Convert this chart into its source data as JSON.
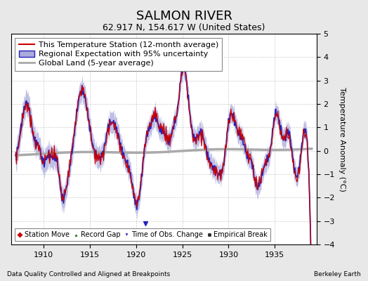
{
  "title": "SALMON RIVER",
  "subtitle": "62.917 N, 154.617 W (United States)",
  "xlabel_left": "Data Quality Controlled and Aligned at Breakpoints",
  "xlabel_right": "Berkeley Earth",
  "ylabel": "Temperature Anomaly (°C)",
  "xlim": [
    1906.5,
    1939.5
  ],
  "ylim": [
    -4,
    5
  ],
  "yticks": [
    -4,
    -3,
    -2,
    -1,
    0,
    1,
    2,
    3,
    4,
    5
  ],
  "xticks": [
    1910,
    1915,
    1920,
    1925,
    1930,
    1935
  ],
  "bg_color": "#e8e8e8",
  "plot_bg_color": "#ffffff",
  "regional_line_color": "#2222bb",
  "regional_fill_color": "#aaaadd",
  "station_line_color": "#cc0000",
  "global_line_color": "#aaaaaa",
  "title_fontsize": 13,
  "subtitle_fontsize": 9,
  "axis_fontsize": 8,
  "legend_fontsize": 8,
  "figsize": [
    5.24,
    4.0
  ],
  "dpi": 100
}
